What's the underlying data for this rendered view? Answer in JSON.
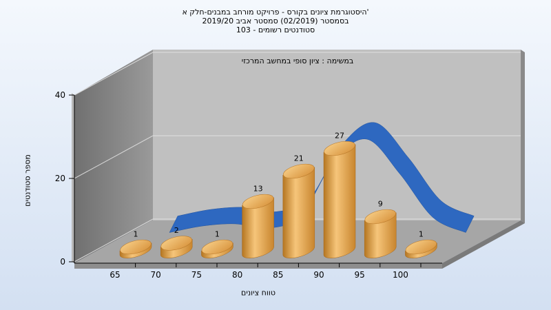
{
  "titles": [
    "היסטוגרמת ציונים בקורס - פרויקט מורחב במבנים-חלק א'",
    "בסמסטר  (02/2019)  סמסטר אביב 2019/20",
    "סטודנטים רשומים - 103"
  ],
  "chart_data": {
    "type": "bar",
    "annotation": "במשימה : ציון סופי במחשב המרכזי",
    "xlabel": "טווח ציונים",
    "ylabel": "מספר סטודנטים",
    "categories": [
      "65",
      "70",
      "75",
      "80",
      "85",
      "90",
      "95",
      "100"
    ],
    "values": [
      1,
      2,
      1,
      13,
      21,
      27,
      9,
      1
    ],
    "value_labels": [
      "1",
      "2",
      "1",
      "13",
      "21",
      "27",
      "9",
      "1"
    ],
    "yticks": [
      "0",
      "20",
      "40"
    ],
    "ylim": [
      0,
      40
    ],
    "grid": true,
    "bar_color": "#e8a848",
    "curve": {
      "type": "normal-distribution-ribbon",
      "color": "#2e68c0",
      "x": [
        65,
        70,
        75,
        80,
        85,
        90,
        95,
        100,
        105,
        110
      ],
      "values": [
        1.5,
        3.0,
        3.5,
        2.5,
        5.5,
        18.0,
        23.0,
        15.0,
        5.0,
        1.5
      ]
    }
  }
}
